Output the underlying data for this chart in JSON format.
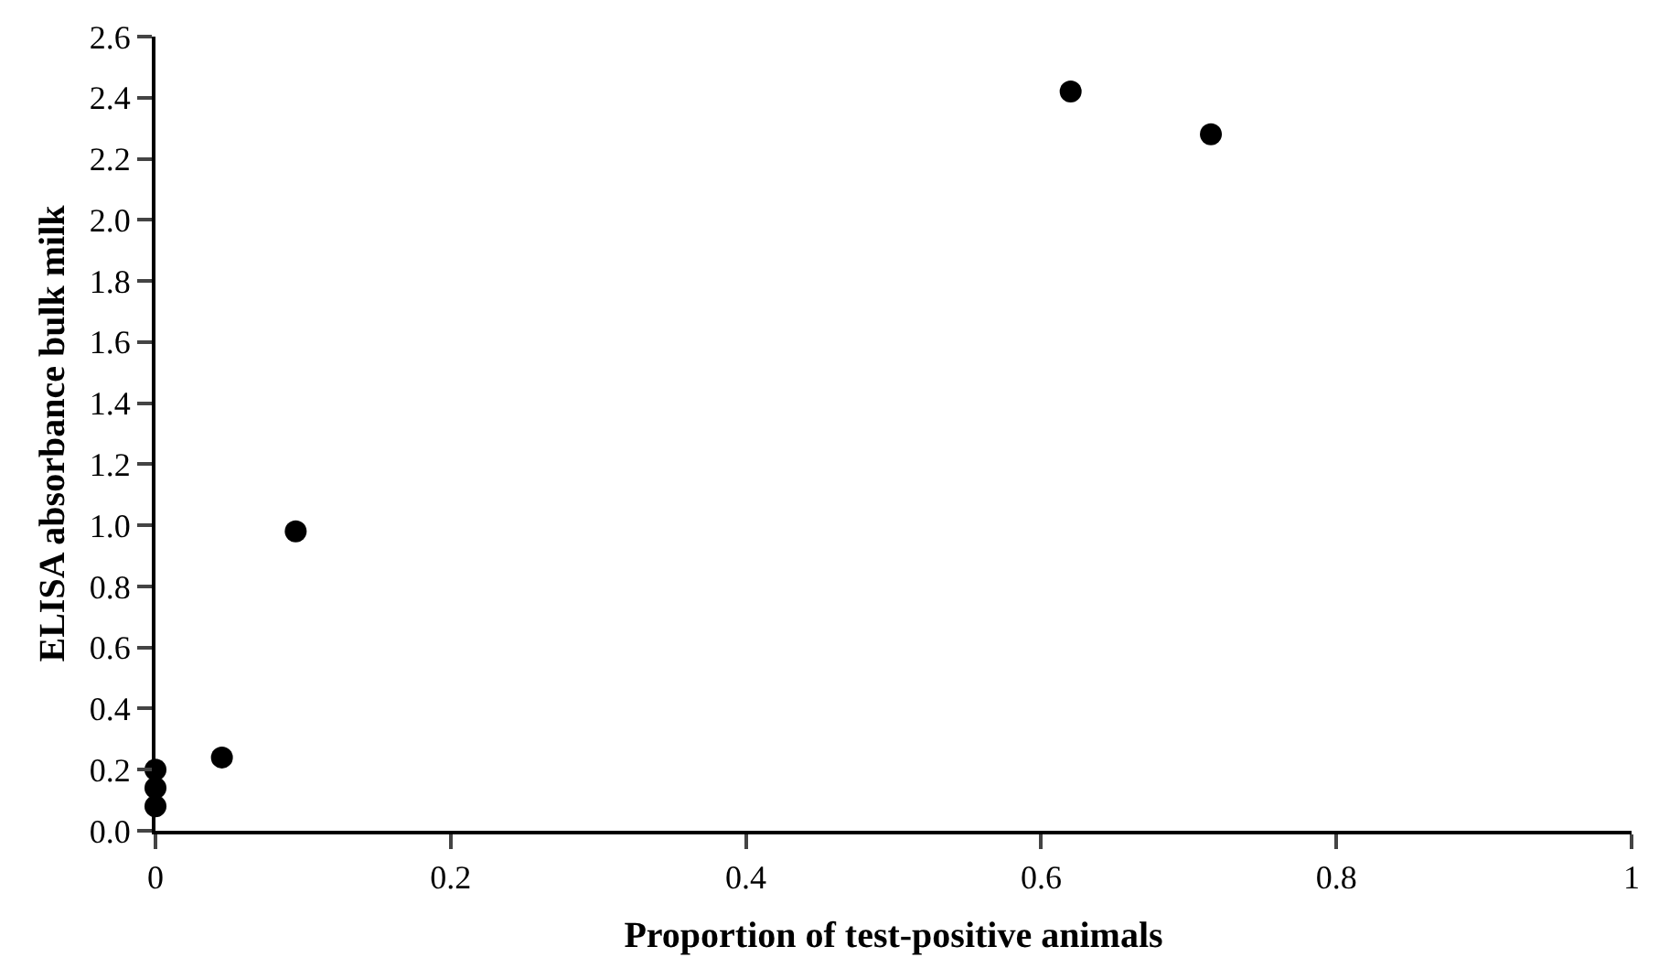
{
  "chart_data": {
    "type": "scatter",
    "xlabel": "Proportion of test-positive animals",
    "ylabel": "ELISA absorbance bulk milk",
    "x": [
      0,
      0,
      0,
      0.045,
      0.095,
      0.62,
      0.715
    ],
    "series": [
      {
        "color": "#000000",
        "values": [
          0.08,
          0.14,
          0.2,
          0.24,
          0.98,
          2.42,
          2.28
        ]
      }
    ],
    "marker": "circle",
    "xlim": [
      0,
      1
    ],
    "xticks": [
      0,
      0.2,
      0.4,
      0.6,
      0.8,
      1
    ],
    "ylim": [
      0,
      2.6
    ],
    "yticks": [
      {
        "value": 0,
        "label": "0.0"
      },
      0.2,
      0.4,
      0.6,
      0.8,
      {
        "value": 1,
        "label": "1.0"
      },
      1.2,
      1.4,
      1.6,
      1.8,
      {
        "value": 2,
        "label": "2.0"
      },
      2.2,
      2.4,
      2.6
    ]
  }
}
